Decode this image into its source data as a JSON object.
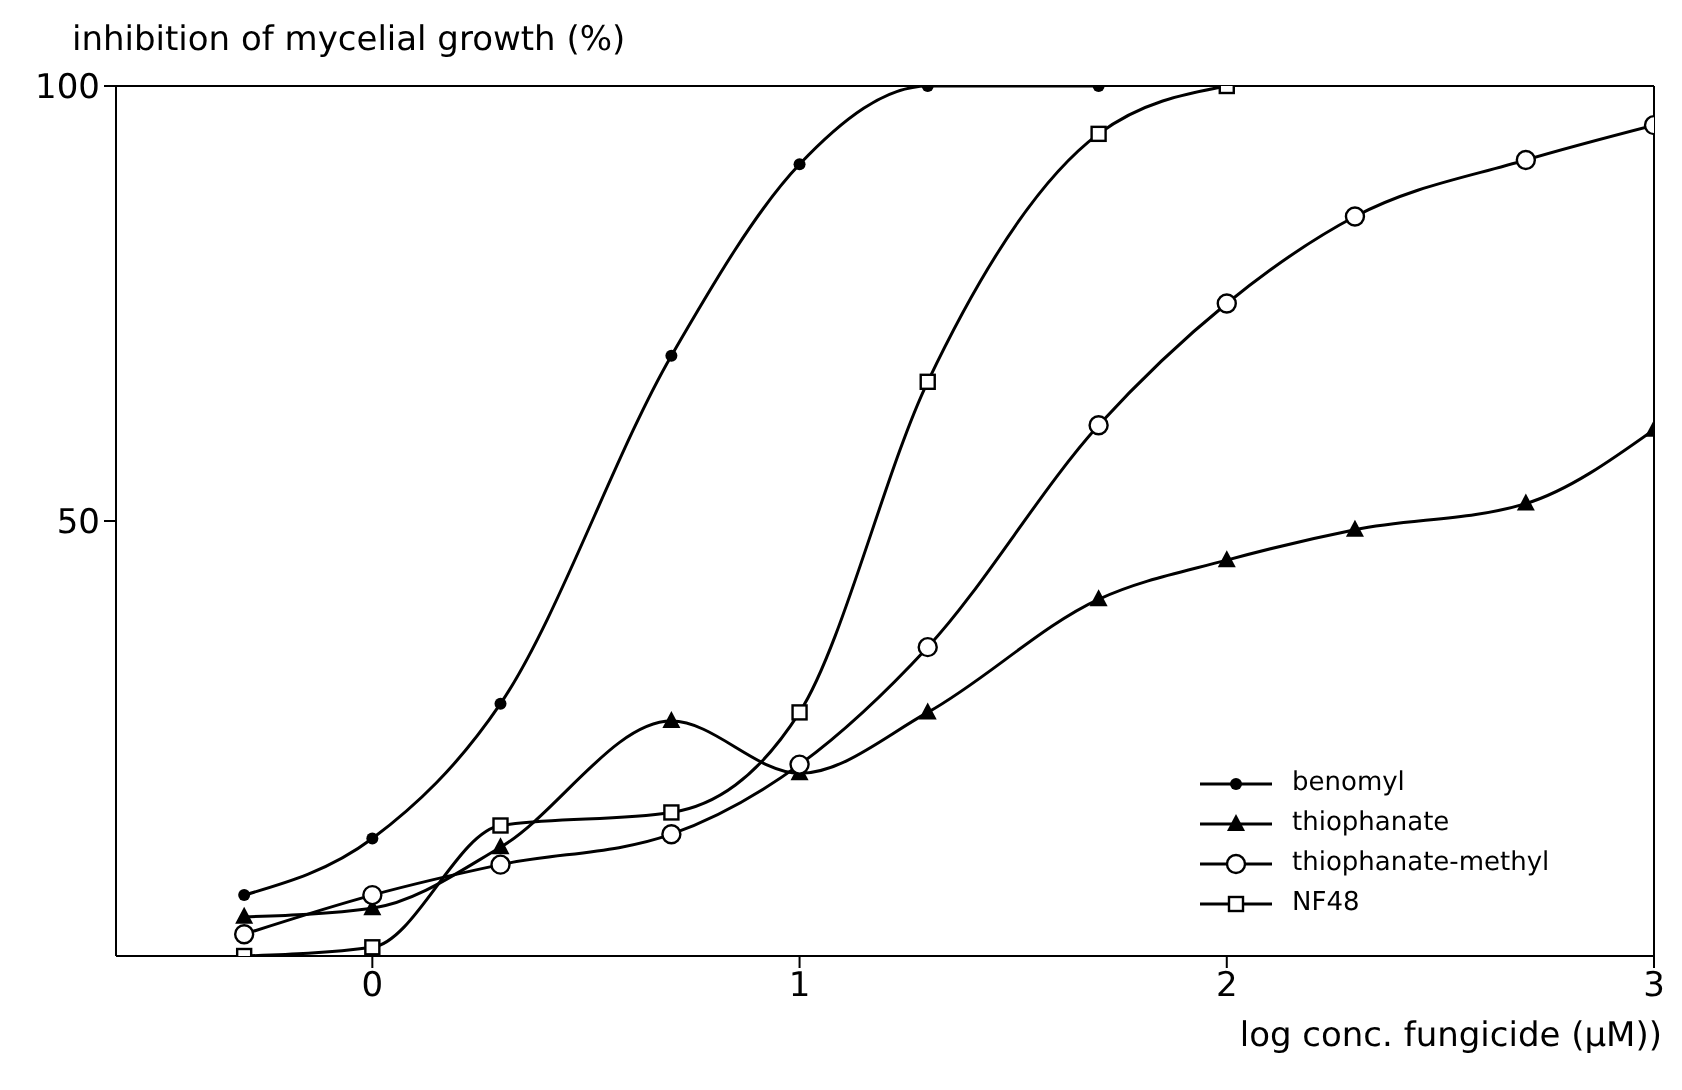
{
  "chart_data": {
    "type": "line",
    "ylabel": "inhibition of mycelial growth (%)",
    "xlabel": "log conc. fungicide (μM))",
    "xlim": [
      -0.6,
      3
    ],
    "xticks": [
      0,
      1,
      2,
      3
    ],
    "ylim": [
      0,
      100
    ],
    "yticks": [
      50,
      100
    ],
    "legend": "bottom right",
    "series": [
      {
        "name": "benomyl",
        "color": "#000000",
        "marker": "circle",
        "x": [
          -0.3,
          0,
          0.3,
          0.7,
          1,
          1.3,
          1.7
        ],
        "values": [
          7,
          13.5,
          29,
          69,
          91,
          100,
          100
        ]
      },
      {
        "name": "thiophanate",
        "color": "#000000",
        "marker": "triangle",
        "x": [
          -0.3,
          0,
          0.3,
          0.7,
          1,
          1.3,
          1.7,
          2,
          2.3,
          2.7,
          3
        ],
        "values": [
          4.5,
          5.5,
          12.5,
          27,
          21,
          28,
          41,
          45.5,
          49,
          52,
          60.5
        ]
      },
      {
        "name": "thiophanate-methyl",
        "color": "#000000",
        "marker": "circle",
        "x": [
          -0.3,
          0,
          0.3,
          0.7,
          1,
          1.3,
          1.7,
          2,
          2.3,
          2.7,
          3
        ],
        "values": [
          2.5,
          7,
          10.5,
          14,
          22,
          35.5,
          61,
          75,
          85,
          91.5,
          95.5
        ]
      },
      {
        "name": "NF48",
        "color": "#000000",
        "marker": "square",
        "x": [
          -0.3,
          0,
          0.3,
          0.7,
          1,
          1.3,
          1.7,
          2
        ],
        "values": [
          0,
          1,
          15,
          16.5,
          28,
          66,
          94.5,
          100
        ]
      }
    ]
  }
}
